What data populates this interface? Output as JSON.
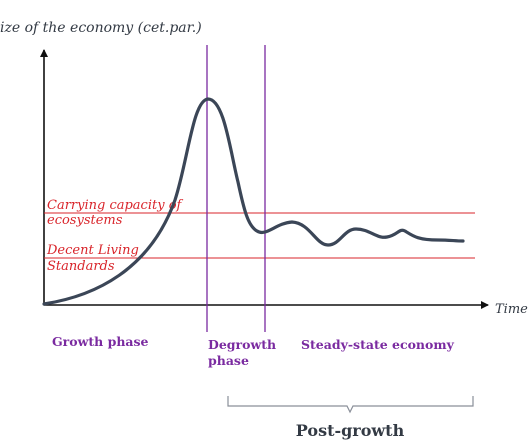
{
  "y_axis_label": "ize of the economy (cet.par.)",
  "x_axis_label": "Time",
  "thresholds": [
    {
      "label_lines": [
        "Carrying capacity of",
        "ecosystems"
      ]
    },
    {
      "label_lines": [
        "Decent Living",
        "Standards"
      ]
    }
  ],
  "phases": [
    {
      "label_lines": [
        "Growth phase"
      ]
    },
    {
      "label_lines": [
        "Degrowth",
        "phase"
      ]
    },
    {
      "label_lines": [
        "Steady-state economy"
      ]
    }
  ],
  "post_growth_label": "Post-growth",
  "colors": {
    "curve": "#3b4657",
    "axis": "#111111",
    "threshold": "#d9252b",
    "phase": "#7a2aa0",
    "brace": "#8a8f99",
    "text": "#333a44"
  }
}
